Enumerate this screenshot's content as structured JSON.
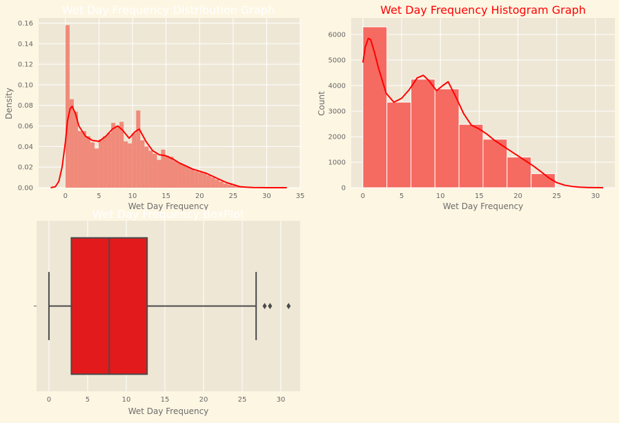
{
  "colors": {
    "figure_bg": "#fdf6e3",
    "plot_bg": "#eee7d6",
    "grid": "#ffffff",
    "tick_text": "#666666",
    "axis_label": "#6c6c6c",
    "title_white": "#ffffff",
    "title_red": "#ff0000",
    "dist_bar": "#f08070",
    "hist_bar": "#f56a61",
    "kde": "#ff0000",
    "box_fill": "#e31a1c",
    "box_edge": "#4a4a4a"
  },
  "chart_data": [
    {
      "type": "bar",
      "subtype": "histogram-density-with-kde",
      "title": "Wet Day Frequency Distribution Graph",
      "xlabel": "Wet Day Frequency",
      "ylabel": "Density",
      "xlim": [
        -4,
        35
      ],
      "ylim": [
        0,
        0.165
      ],
      "xticks": [
        0,
        5,
        10,
        15,
        20,
        25,
        30,
        35
      ],
      "yticks": [
        0.0,
        0.02,
        0.04,
        0.06,
        0.08,
        0.1,
        0.12,
        0.14,
        0.16
      ],
      "ytick_labels": [
        "0.00",
        "0.02",
        "0.04",
        "0.06",
        "0.08",
        "0.10",
        "0.12",
        "0.14",
        "0.16"
      ],
      "grid": true,
      "bin_width": 0.62,
      "bins": [
        {
          "x": 0.0,
          "y": 0.158
        },
        {
          "x": 0.62,
          "y": 0.086
        },
        {
          "x": 1.24,
          "y": 0.074
        },
        {
          "x": 1.86,
          "y": 0.055
        },
        {
          "x": 2.48,
          "y": 0.055
        },
        {
          "x": 3.1,
          "y": 0.05
        },
        {
          "x": 3.72,
          "y": 0.044
        },
        {
          "x": 4.34,
          "y": 0.038
        },
        {
          "x": 4.96,
          "y": 0.047
        },
        {
          "x": 5.58,
          "y": 0.05
        },
        {
          "x": 6.2,
          "y": 0.053
        },
        {
          "x": 6.82,
          "y": 0.063
        },
        {
          "x": 7.44,
          "y": 0.06
        },
        {
          "x": 8.06,
          "y": 0.064
        },
        {
          "x": 8.68,
          "y": 0.045
        },
        {
          "x": 9.3,
          "y": 0.043
        },
        {
          "x": 9.92,
          "y": 0.053
        },
        {
          "x": 10.54,
          "y": 0.075
        },
        {
          "x": 11.16,
          "y": 0.046
        },
        {
          "x": 11.78,
          "y": 0.04
        },
        {
          "x": 12.4,
          "y": 0.036
        },
        {
          "x": 13.02,
          "y": 0.033
        },
        {
          "x": 13.64,
          "y": 0.027
        },
        {
          "x": 14.26,
          "y": 0.037
        },
        {
          "x": 14.88,
          "y": 0.031
        },
        {
          "x": 15.5,
          "y": 0.03
        },
        {
          "x": 16.12,
          "y": 0.026
        },
        {
          "x": 16.74,
          "y": 0.024
        },
        {
          "x": 17.36,
          "y": 0.022
        },
        {
          "x": 17.98,
          "y": 0.02
        },
        {
          "x": 18.6,
          "y": 0.018
        },
        {
          "x": 19.22,
          "y": 0.016
        },
        {
          "x": 19.84,
          "y": 0.015
        },
        {
          "x": 20.46,
          "y": 0.014
        },
        {
          "x": 21.08,
          "y": 0.012
        },
        {
          "x": 21.7,
          "y": 0.01
        },
        {
          "x": 22.32,
          "y": 0.008
        },
        {
          "x": 22.94,
          "y": 0.006
        },
        {
          "x": 23.56,
          "y": 0.004
        },
        {
          "x": 24.18,
          "y": 0.003
        },
        {
          "x": 24.8,
          "y": 0.002
        },
        {
          "x": 25.42,
          "y": 0.001
        },
        {
          "x": 26.04,
          "y": 0.001
        }
      ],
      "kde": {
        "x": [
          -2.2,
          -1.5,
          -1.0,
          -0.5,
          0.0,
          0.3,
          0.7,
          1.0,
          1.5,
          2.0,
          3.0,
          4.0,
          5.0,
          6.0,
          7.0,
          7.8,
          8.5,
          9.5,
          10.3,
          11.0,
          12.0,
          13.0,
          14.0,
          15.0,
          16.0,
          17.0,
          18.0,
          19.0,
          20.0,
          21.0,
          22.0,
          23.0,
          24.0,
          25.0,
          26.0,
          27.0,
          28.0,
          30.0,
          33.0
        ],
        "y": [
          0.0,
          0.001,
          0.006,
          0.02,
          0.045,
          0.065,
          0.077,
          0.079,
          0.072,
          0.06,
          0.05,
          0.046,
          0.045,
          0.05,
          0.057,
          0.06,
          0.056,
          0.048,
          0.054,
          0.057,
          0.045,
          0.036,
          0.032,
          0.031,
          0.028,
          0.024,
          0.021,
          0.018,
          0.016,
          0.014,
          0.011,
          0.008,
          0.005,
          0.003,
          0.001,
          0.0005,
          0.0002,
          0.0,
          0.0
        ]
      }
    },
    {
      "type": "bar",
      "subtype": "histogram-count-with-kde",
      "title": "Wet Day Frequency Histogram Graph",
      "xlabel": "Wet Day Frequency",
      "ylabel": "Count",
      "xlim": [
        -1.5,
        32.5
      ],
      "ylim": [
        0,
        6650
      ],
      "xticks": [
        0,
        5,
        10,
        15,
        20,
        25,
        30
      ],
      "yticks": [
        0,
        1000,
        2000,
        3000,
        4000,
        5000,
        6000
      ],
      "grid": true,
      "bins": [
        {
          "x0": 0.0,
          "x1": 3.1,
          "count": 6300
        },
        {
          "x0": 3.1,
          "x1": 6.2,
          "count": 3350
        },
        {
          "x0": 6.2,
          "x1": 9.3,
          "count": 4250
        },
        {
          "x0": 9.3,
          "x1": 12.4,
          "count": 3870
        },
        {
          "x0": 12.4,
          "x1": 15.5,
          "count": 2480
        },
        {
          "x0": 15.5,
          "x1": 18.6,
          "count": 1900
        },
        {
          "x0": 18.6,
          "x1": 21.7,
          "count": 1200
        },
        {
          "x0": 21.7,
          "x1": 24.8,
          "count": 550
        }
      ],
      "kde": {
        "x": [
          0.0,
          0.3,
          0.7,
          1.0,
          1.5,
          2.0,
          3.0,
          4.0,
          5.0,
          6.0,
          7.0,
          7.8,
          8.5,
          9.5,
          10.3,
          11.0,
          12.0,
          13.0,
          14.0,
          15.0,
          16.0,
          17.0,
          18.0,
          19.0,
          20.0,
          21.0,
          22.0,
          23.0,
          24.0,
          25.0,
          26.0,
          27.0,
          28.0,
          29.0,
          31.0
        ],
        "y": [
          4900,
          5500,
          5850,
          5800,
          5300,
          4700,
          3700,
          3350,
          3500,
          3850,
          4300,
          4400,
          4200,
          3800,
          4000,
          4150,
          3550,
          2900,
          2450,
          2300,
          2100,
          1850,
          1650,
          1450,
          1250,
          1050,
          850,
          620,
          380,
          200,
          100,
          50,
          20,
          8,
          0
        ]
      }
    },
    {
      "type": "boxplot",
      "title": "Wet Day Frequency BoxPlot",
      "xlabel": "Wet Day Frequency",
      "ylabel": "",
      "xlim": [
        -1.6,
        32.5
      ],
      "xticks": [
        0,
        5,
        10,
        15,
        20,
        25,
        30
      ],
      "grid": true,
      "whisker_low": 0.0,
      "q1": 2.9,
      "median": 7.8,
      "q3": 12.7,
      "whisker_high": 26.8,
      "outliers": [
        27.9,
        28.6,
        31.0
      ]
    }
  ]
}
